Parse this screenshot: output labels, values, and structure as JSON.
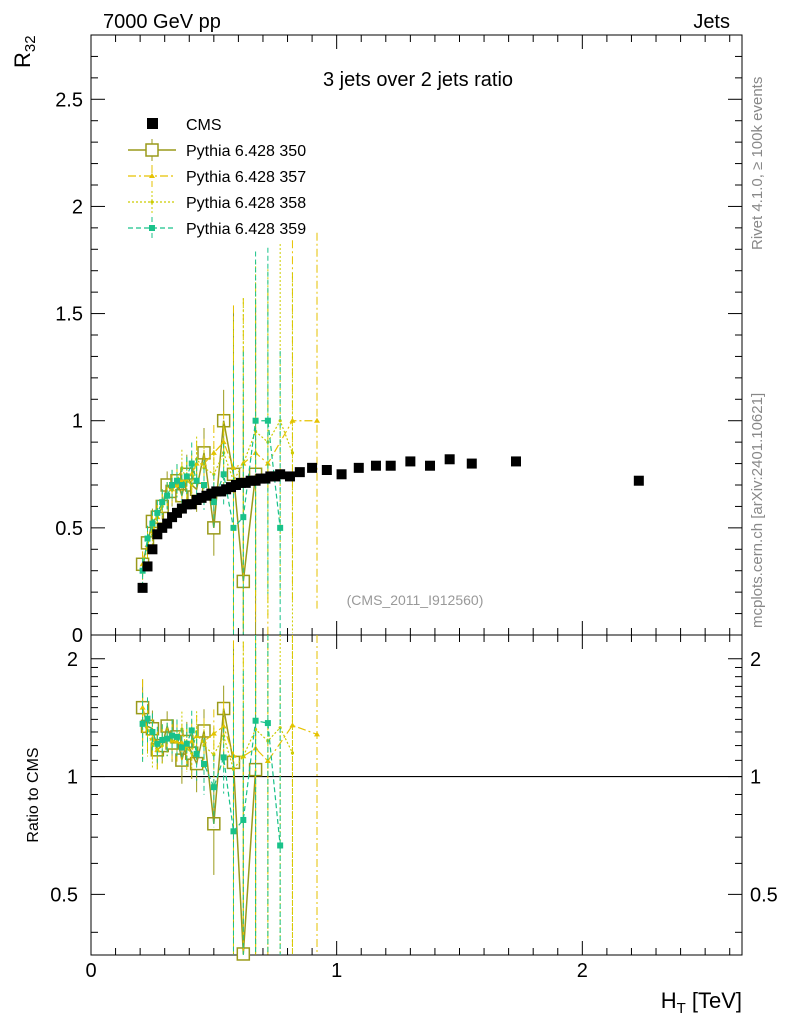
{
  "header": {
    "left": "7000 GeV pp",
    "right": "Jets",
    "side_top": "Rivet 4.1.0, ≥ 100k events",
    "side_bottom": "mcplots.cern.ch [arXiv:2401.10621]"
  },
  "chart_data": {
    "type": "scatter",
    "title": "3 jets over 2 jets ratio",
    "analysis": "(CMS_2011_I912560)",
    "xlabel": "H_T [TeV]",
    "ylabel": "R_32",
    "ratio_ylabel": "Ratio to CMS",
    "xlim": [
      0,
      2.65
    ],
    "ylim": [
      0,
      2.8
    ],
    "ratio_ylim": [
      0.35,
      2.3
    ],
    "x_ticks": [
      "0",
      "1",
      "2"
    ],
    "y_ticks": [
      "0",
      "0.5",
      "1",
      "1.5",
      "2",
      "2.5"
    ],
    "ratio_y_ticks": [
      "0.5",
      "1",
      "2"
    ],
    "colors": {
      "cms": "#000000",
      "p350": "#9a9a1a",
      "p357": "#e6c200",
      "p358": "#cccc00",
      "p359": "#19c28a"
    },
    "series": [
      {
        "name": "CMS",
        "key": "cms",
        "x": [
          0.21,
          0.23,
          0.25,
          0.27,
          0.29,
          0.31,
          0.33,
          0.35,
          0.37,
          0.39,
          0.41,
          0.43,
          0.45,
          0.47,
          0.49,
          0.51,
          0.53,
          0.55,
          0.57,
          0.59,
          0.61,
          0.63,
          0.65,
          0.67,
          0.69,
          0.71,
          0.73,
          0.75,
          0.77,
          0.81,
          0.85,
          0.9,
          0.96,
          1.02,
          1.09,
          1.16,
          1.22,
          1.3,
          1.38,
          1.46,
          1.55,
          1.73,
          2.23
        ],
        "y": [
          0.22,
          0.32,
          0.4,
          0.47,
          0.5,
          0.52,
          0.55,
          0.57,
          0.59,
          0.61,
          0.61,
          0.63,
          0.64,
          0.65,
          0.66,
          0.67,
          0.67,
          0.68,
          0.69,
          0.7,
          0.71,
          0.71,
          0.72,
          0.72,
          0.73,
          0.73,
          0.74,
          0.74,
          0.75,
          0.74,
          0.76,
          0.78,
          0.77,
          0.75,
          0.78,
          0.79,
          0.79,
          0.81,
          0.79,
          0.82,
          0.8,
          0.81,
          0.72
        ]
      },
      {
        "name": "Pythia 6.428 350",
        "key": "p350",
        "x": [
          0.21,
          0.23,
          0.25,
          0.27,
          0.29,
          0.31,
          0.33,
          0.35,
          0.37,
          0.39,
          0.41,
          0.43,
          0.46,
          0.5,
          0.54,
          0.58,
          0.62,
          0.67
        ],
        "y": [
          0.33,
          0.43,
          0.53,
          0.55,
          0.6,
          0.7,
          0.67,
          0.72,
          0.65,
          0.75,
          0.7,
          0.68,
          0.85,
          0.5,
          1.0,
          0.75,
          0.25,
          0.75
        ]
      },
      {
        "name": "Pythia 6.428 357",
        "key": "p357",
        "x": [
          0.21,
          0.23,
          0.25,
          0.27,
          0.29,
          0.31,
          0.33,
          0.35,
          0.37,
          0.39,
          0.41,
          0.43,
          0.46,
          0.5,
          0.54,
          0.58,
          0.62,
          0.67,
          0.72,
          0.82,
          0.92
        ],
        "y": [
          0.33,
          0.42,
          0.5,
          0.55,
          0.62,
          0.65,
          0.68,
          0.7,
          0.72,
          0.72,
          0.75,
          0.8,
          0.8,
          0.85,
          0.9,
          0.78,
          0.8,
          0.85,
          0.8,
          1.0,
          1.0
        ]
      },
      {
        "name": "Pythia 6.428 358",
        "key": "p358",
        "x": [
          0.21,
          0.23,
          0.25,
          0.27,
          0.29,
          0.31,
          0.33,
          0.35,
          0.37,
          0.39,
          0.41,
          0.43,
          0.46,
          0.5,
          0.54,
          0.58,
          0.62,
          0.67,
          0.72,
          0.77,
          0.82
        ],
        "y": [
          0.3,
          0.42,
          0.48,
          0.55,
          0.6,
          0.65,
          0.7,
          0.72,
          0.78,
          0.72,
          0.7,
          0.82,
          0.78,
          0.75,
          0.85,
          0.72,
          0.8,
          0.95,
          0.9,
          1.0,
          0.85
        ]
      },
      {
        "name": "Pythia 6.428 359",
        "key": "p359",
        "x": [
          0.21,
          0.23,
          0.25,
          0.27,
          0.29,
          0.31,
          0.33,
          0.35,
          0.37,
          0.39,
          0.41,
          0.43,
          0.46,
          0.5,
          0.54,
          0.58,
          0.62,
          0.67,
          0.72,
          0.77
        ],
        "y": [
          0.3,
          0.45,
          0.52,
          0.57,
          0.62,
          0.65,
          0.7,
          0.72,
          0.7,
          0.74,
          0.8,
          0.72,
          0.7,
          0.62,
          0.75,
          0.5,
          0.55,
          1.0,
          1.0,
          0.5
        ]
      }
    ]
  }
}
